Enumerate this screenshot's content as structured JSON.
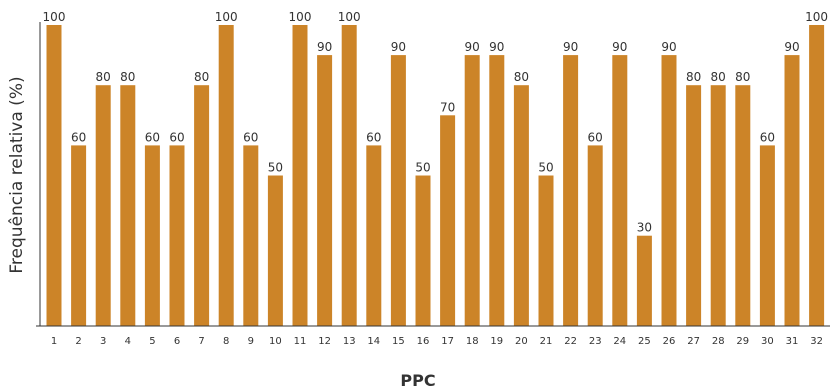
{
  "chart_data": {
    "type": "bar",
    "xlabel": "PPC",
    "ylabel": "Frequência relativa (%)",
    "ylim": [
      0,
      100
    ],
    "grid": false,
    "categories": [
      "1",
      "2",
      "3",
      "4",
      "5",
      "6",
      "7",
      "8",
      "9",
      "10",
      "11",
      "12",
      "13",
      "14",
      "15",
      "16",
      "17",
      "18",
      "19",
      "20",
      "21",
      "22",
      "23",
      "24",
      "25",
      "26",
      "27",
      "28",
      "29",
      "30",
      "31",
      "32"
    ],
    "series": [
      {
        "values": [
          100,
          60,
          80,
          80,
          60,
          60,
          80,
          100,
          60,
          50,
          100,
          90,
          100,
          60,
          90,
          50,
          70,
          90,
          90,
          80,
          50,
          90,
          60,
          90,
          30,
          90,
          80,
          80,
          80,
          60,
          90,
          100
        ],
        "color": "#CC8428"
      }
    ]
  }
}
